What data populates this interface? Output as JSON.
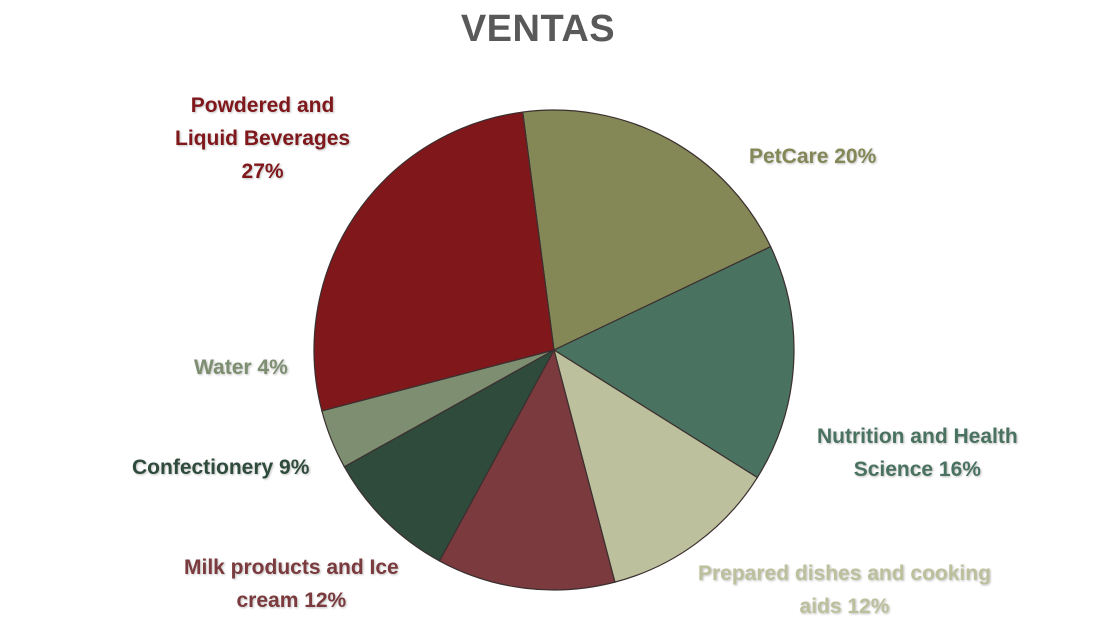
{
  "chart_data": {
    "type": "pie",
    "title": "VENTAS",
    "slices": [
      {
        "label": "PetCare",
        "value": 20,
        "color": "#848756"
      },
      {
        "label": "Nutrition and Health Science",
        "value": 16,
        "color": "#4A7260"
      },
      {
        "label": "Prepared dishes and cooking aids",
        "value": 12,
        "color": "#BDC09C"
      },
      {
        "label": "Milk products and Ice cream",
        "value": 12,
        "color": "#7B3A3D"
      },
      {
        "label": "Confectionery",
        "value": 9,
        "color": "#2E4B3C"
      },
      {
        "label": "Water",
        "value": 4,
        "color": "#7E8E70"
      },
      {
        "label": "Powdered and Liquid Beverages",
        "value": 27,
        "color": "#7F171B"
      }
    ],
    "data_labels": [
      {
        "lines": [
          "PetCare 20%"
        ],
        "color": "#848756"
      },
      {
        "lines": [
          "Nutrition and Health",
          "Science 16%"
        ],
        "color": "#4A7260"
      },
      {
        "lines": [
          "Prepared dishes and cooking",
          "aids 12%"
        ],
        "color": "#BDC09C"
      },
      {
        "lines": [
          "Milk products and Ice",
          "cream 12%"
        ],
        "color": "#7B3A3D"
      },
      {
        "lines": [
          "Confectionery 9%"
        ],
        "color": "#2E4B3C"
      },
      {
        "lines": [
          "Water 4%"
        ],
        "color": "#7E8E70"
      },
      {
        "lines": [
          "Powdered and",
          "Liquid Beverages",
          "27%"
        ],
        "color": "#7F171B"
      }
    ],
    "legend": "none",
    "slice_border_color": "#3b2f2f"
  }
}
